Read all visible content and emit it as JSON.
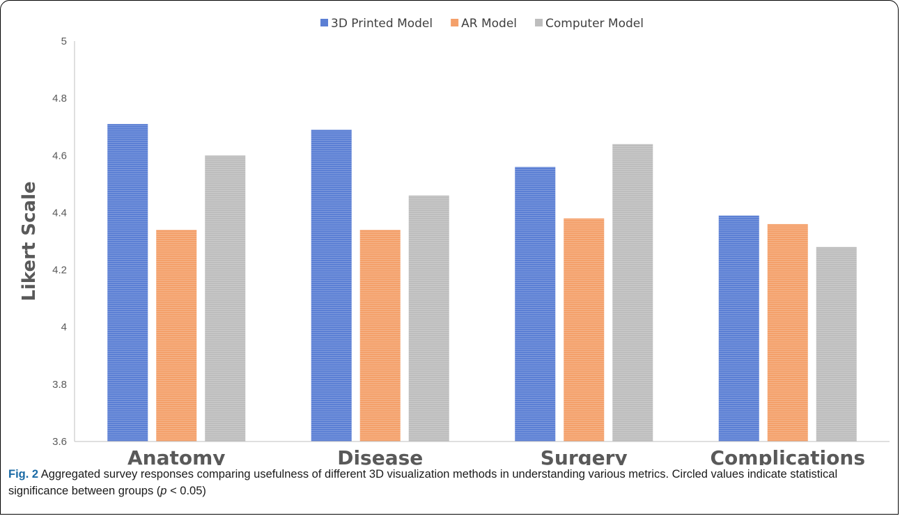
{
  "chart_data": {
    "type": "bar",
    "categories": [
      "Anatomy",
      "Disease",
      "Surgery",
      "Complications"
    ],
    "series": [
      {
        "name": "3D Printed Model",
        "color": "#5b7fd4",
        "values": [
          4.71,
          4.69,
          4.56,
          4.39
        ]
      },
      {
        "name": "AR Model",
        "color": "#f4a06a",
        "values": [
          4.34,
          4.34,
          4.38,
          4.36
        ]
      },
      {
        "name": "Computer Model",
        "color": "#bdbdbd",
        "values": [
          4.6,
          4.46,
          4.64,
          4.28
        ]
      }
    ],
    "ylabel": "Likert Scale",
    "xlabel": "",
    "ylim": [
      3.6,
      5
    ],
    "yticks": [
      "3.6",
      "3.8",
      "4",
      "4.2",
      "4.4",
      "4.6",
      "4.8",
      "5"
    ],
    "grid": false,
    "legend_position": "top"
  },
  "caption": {
    "label": "Fig. 2",
    "text": " Aggregated survey responses comparing usefulness of different 3D visualization methods in understanding various metrics. Circled values indicate statistical significance between groups (",
    "p_symbol": "p",
    "p_rest": " < 0.05)"
  }
}
